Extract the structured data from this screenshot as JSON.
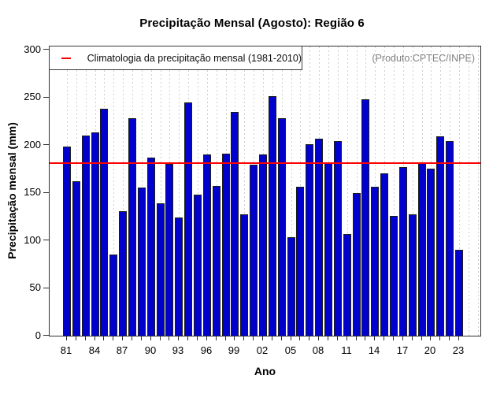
{
  "chart_data": {
    "type": "bar",
    "title": "Precipitação Mensal (Agosto): Região 6",
    "xlabel": "Ano",
    "ylabel": "Precipitação mensal (mm)",
    "annotation": "(Produto:CPTEC/INPE)",
    "legend": [
      "Climatologia da precipitação mensal (1981-2010)"
    ],
    "legend_position": "top-left-inside",
    "grid": "vertical-dotted",
    "categories": [
      1981,
      1982,
      1983,
      1984,
      1985,
      1986,
      1987,
      1988,
      1989,
      1990,
      1991,
      1992,
      1993,
      1994,
      1995,
      1996,
      1997,
      1998,
      1999,
      2000,
      2001,
      2002,
      2003,
      2004,
      2005,
      2006,
      2007,
      2008,
      2009,
      2010,
      2011,
      2012,
      2013,
      2014,
      2015,
      2016,
      2017,
      2018,
      2019,
      2020,
      2021,
      2022,
      2023
    ],
    "values": [
      198,
      162,
      210,
      213,
      238,
      85,
      131,
      228,
      155,
      187,
      139,
      180,
      124,
      245,
      148,
      190,
      157,
      191,
      235,
      127,
      179,
      190,
      251,
      228,
      103,
      156,
      201,
      207,
      181,
      204,
      107,
      150,
      248,
      156,
      170,
      126,
      177,
      127,
      182,
      175,
      209,
      204,
      90
    ],
    "climatology_value": 181,
    "ylim": [
      0,
      300
    ],
    "yticks": [
      0,
      50,
      100,
      150,
      200,
      250,
      300
    ],
    "xtick_years": [
      1981,
      1984,
      1987,
      1990,
      1993,
      1996,
      1999,
      2002,
      2005,
      2008,
      2011,
      2014,
      2017,
      2020,
      2023
    ],
    "xtick_labels": [
      "81",
      "84",
      "87",
      "90",
      "93",
      "96",
      "99",
      "02",
      "05",
      "08",
      "11",
      "14",
      "17",
      "20",
      "23"
    ],
    "x_axis_start_year": 1981,
    "x_grid_end_year": 2025,
    "bar_color": "#0101cd",
    "bar_border_color": "#1c1c1c",
    "climatology_line_color": "#fe0000",
    "annotation_color": "#828282",
    "gridline_color": "#cfcfcf"
  }
}
